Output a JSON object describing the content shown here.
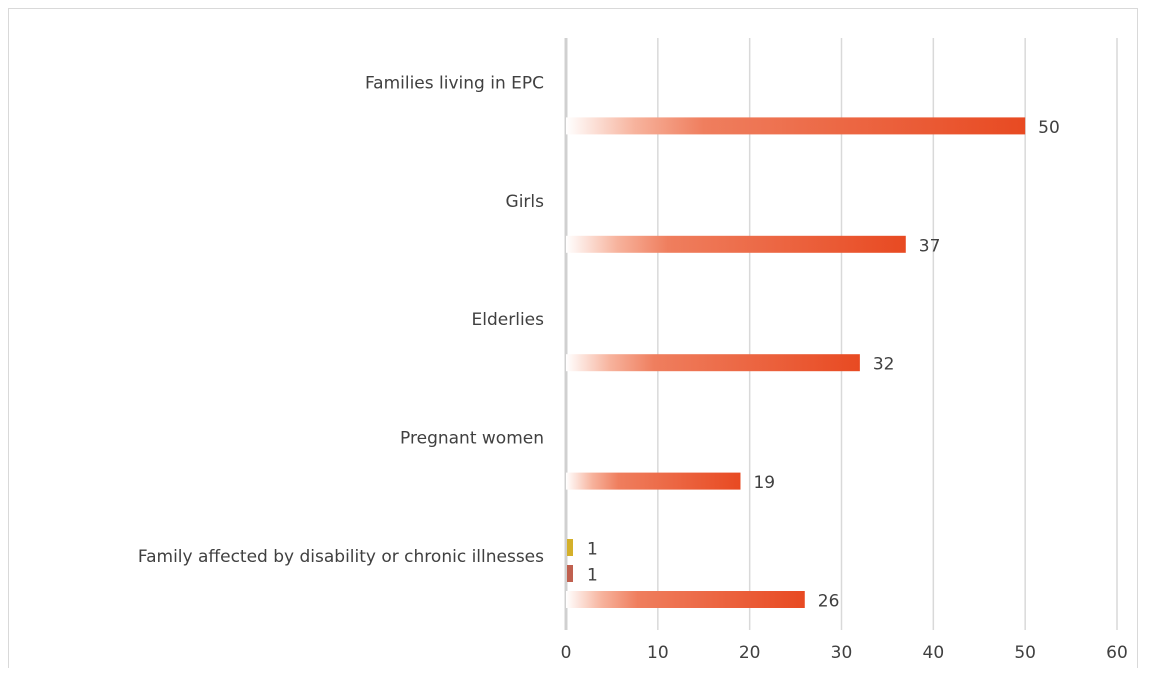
{
  "chart_data": {
    "type": "bar",
    "orientation": "horizontal",
    "categories": [
      "Families living in EPC",
      "Girls",
      "Elderlies",
      "Pregnant women",
      "Family affected by disability or chronic illnesses"
    ],
    "series": [
      {
        "values": [
          null,
          null,
          null,
          null,
          1
        ],
        "color": "#d4b02a"
      },
      {
        "values": [
          null,
          null,
          null,
          null,
          1
        ],
        "color": "#c0604f"
      },
      {
        "values": [
          50,
          37,
          32,
          19,
          26
        ],
        "color": "#e8502a"
      }
    ],
    "xlim": [
      0,
      60
    ],
    "xticks": [
      "0",
      "10",
      "20",
      "30",
      "40",
      "50",
      "60"
    ],
    "grid": true,
    "legend": "none"
  }
}
